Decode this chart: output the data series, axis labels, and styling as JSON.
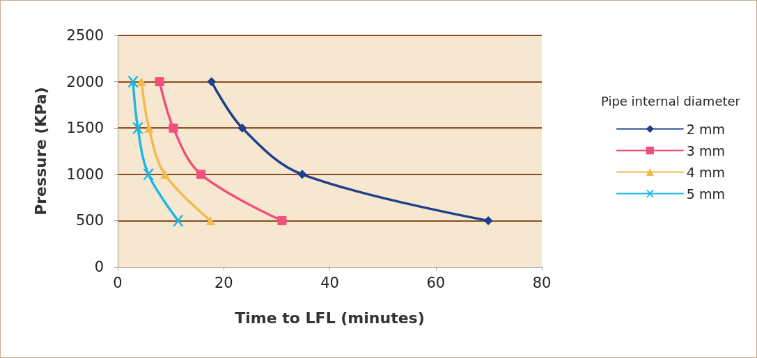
{
  "chart_data": {
    "type": "line",
    "xlabel": "Time to LFL (minutes)",
    "ylabel": "Pressure (KPa)",
    "legend_title": "Pipe internal diameter",
    "series": [
      {
        "name": "2 mm",
        "color": "#1f3f8a",
        "marker": "diamond",
        "x": [
          17.7,
          23.5,
          34.8,
          69.9
        ],
        "values": [
          2000,
          1500,
          1000,
          500
        ]
      },
      {
        "name": "3 mm",
        "color": "#f0507a",
        "marker": "square",
        "x": [
          7.9,
          10.5,
          15.7,
          31
        ],
        "values": [
          2000,
          1500,
          1000,
          500
        ]
      },
      {
        "name": "4 mm",
        "color": "#f3b94a",
        "marker": "triangle",
        "x": [
          4.5,
          5.9,
          8.9,
          17.5
        ],
        "values": [
          2000,
          1500,
          1000,
          500
        ]
      },
      {
        "name": "5 mm",
        "color": "#1ab8e6",
        "marker": "cross",
        "x": [
          2.9,
          3.8,
          5.8,
          11.4
        ],
        "values": [
          2000,
          1500,
          1000,
          500
        ]
      }
    ],
    "xlim": [
      0,
      80
    ],
    "xticks": [
      0,
      20,
      40,
      60,
      80
    ],
    "ylim": [
      0,
      2500
    ],
    "yticks": [
      0,
      500,
      1000,
      1500,
      2000,
      2500
    ],
    "grid": "y",
    "legend": "right",
    "line_style": "solid"
  }
}
